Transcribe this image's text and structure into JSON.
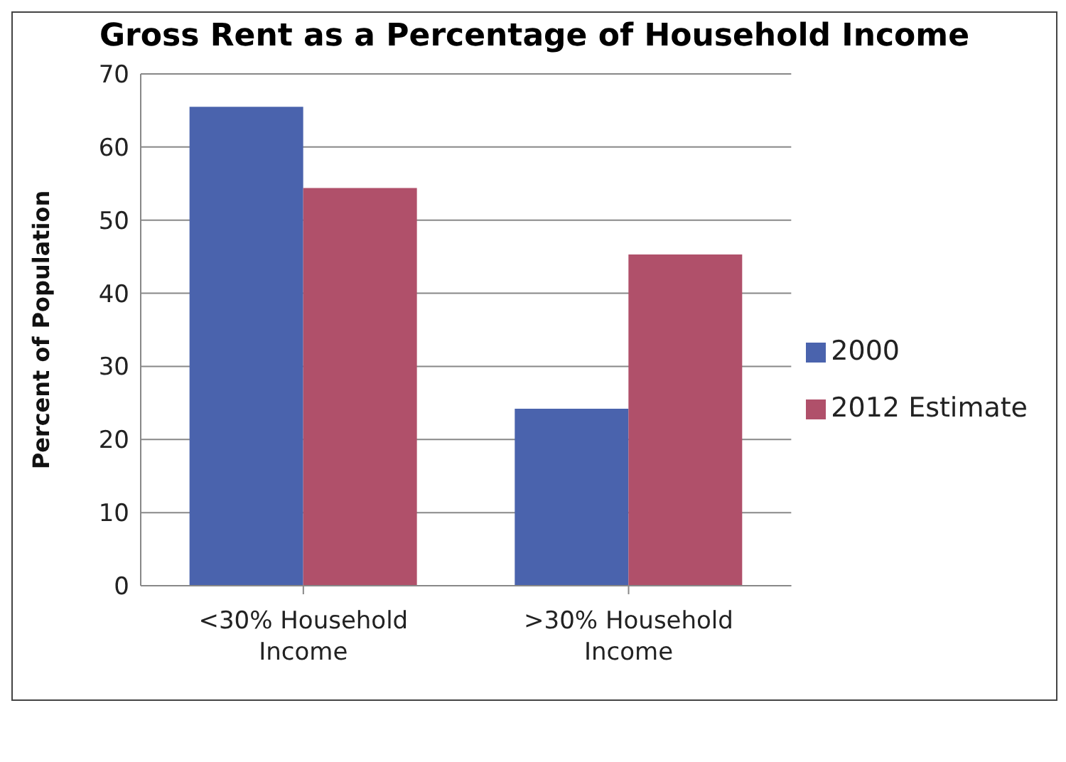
{
  "chart_data": {
    "type": "bar",
    "title": "Gross Rent as a Percentage of Household Income",
    "ylabel": "Percent of Population",
    "categories": [
      "<30% Household Income",
      ">30% Household Income"
    ],
    "series": [
      {
        "name": "2000",
        "color": "#4a63ad",
        "values": [
          65.5,
          24.2
        ]
      },
      {
        "name": "2012 Estimate",
        "color": "#b0506a",
        "values": [
          54.4,
          45.3
        ]
      }
    ],
    "ylim": [
      0,
      70
    ],
    "yticks": [
      0,
      10,
      20,
      30,
      40,
      50,
      60,
      70
    ],
    "grid": "y",
    "legend": "right"
  }
}
